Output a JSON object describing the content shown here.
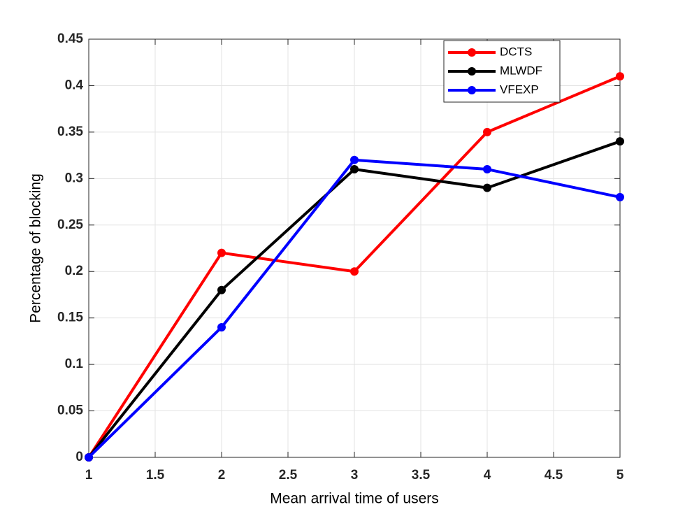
{
  "chart_data": {
    "type": "line",
    "x_label": "Mean arrival time of users",
    "y_label": "Percentage of blocking",
    "x": [
      1,
      2,
      3,
      4,
      5
    ],
    "series": [
      {
        "name": "DCTS",
        "color": "#ff0000",
        "values": [
          0,
          0.22,
          0.2,
          0.35,
          0.41
        ]
      },
      {
        "name": "MLWDF",
        "color": "#000000",
        "values": [
          0,
          0.18,
          0.31,
          0.29,
          0.34
        ]
      },
      {
        "name": "VFEXP",
        "color": "#0000ff",
        "values": [
          0,
          0.14,
          0.32,
          0.31,
          0.28
        ]
      }
    ],
    "xlim": [
      1,
      5
    ],
    "xticks": [
      1,
      1.5,
      2,
      2.5,
      3,
      3.5,
      4,
      4.5,
      5
    ],
    "ylim": [
      0,
      0.45
    ],
    "yticks": [
      0,
      0.05,
      0.1,
      0.15,
      0.2,
      0.25,
      0.3,
      0.35,
      0.4,
      0.45
    ],
    "grid": true,
    "legend": "northeast"
  }
}
